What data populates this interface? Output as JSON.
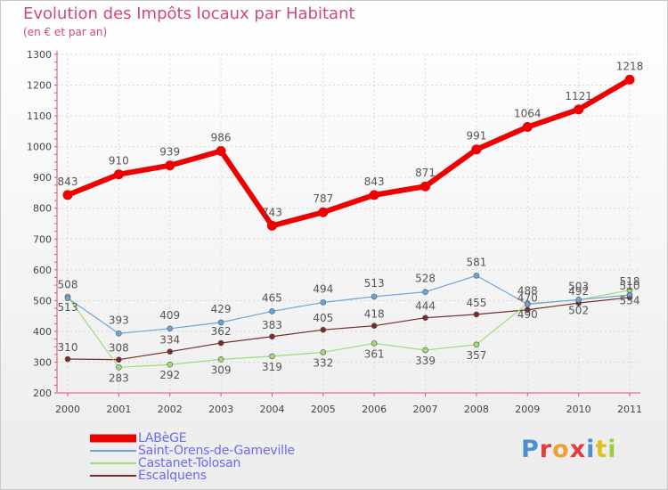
{
  "header": {
    "title": "Evolution des Impôts locaux par Habitant",
    "subtitle": "(en € et par an)"
  },
  "brand": {
    "text": "Proxiti",
    "letter_colors": [
      "#4a90d9",
      "#e23b3b",
      "#f0a030",
      "#e23b3b",
      "#4a90d9",
      "#e0c020",
      "#9ad040"
    ]
  },
  "chart_data": {
    "type": "line",
    "title": "Evolution des Impôts locaux par Habitant",
    "subtitle": "(en € et par an)",
    "xlabel": "",
    "ylabel": "",
    "ylim": [
      200,
      1300
    ],
    "yticks": [
      200,
      300,
      400,
      500,
      600,
      700,
      800,
      900,
      1000,
      1100,
      1200,
      1300
    ],
    "categories": [
      "2000",
      "2001",
      "2002",
      "2003",
      "2004",
      "2005",
      "2006",
      "2007",
      "2008",
      "2009",
      "2010",
      "2011"
    ],
    "legend_position": "bottom-left",
    "series": [
      {
        "name": "LABèGE",
        "color": "#ee0000",
        "values": [
          843,
          910,
          939,
          986,
          743,
          787,
          843,
          871,
          991,
          1064,
          1121,
          1218
        ],
        "labels": [
          "843",
          "910",
          "939",
          "986",
          "743",
          "787",
          "843",
          "871",
          "991",
          "1064",
          "1121",
          "1218"
        ]
      },
      {
        "name": "Saint-Orens-de-Gameville",
        "color": "#6aa4d8",
        "values": [
          508,
          393,
          409,
          429,
          465,
          494,
          513,
          528,
          581,
          488,
          503,
          518
        ],
        "labels": [
          "508",
          "393",
          "409",
          "429",
          "465",
          "494",
          "513",
          "528",
          "581",
          "488",
          "503",
          "518"
        ]
      },
      {
        "name": "Castanet-Tolosan",
        "color": "#a0dc78",
        "values": [
          513,
          283,
          292,
          309,
          319,
          332,
          361,
          339,
          357,
          490,
          502,
          534
        ],
        "labels": [
          "513",
          "283",
          "292",
          "309",
          "319",
          "332",
          "361",
          "339",
          "357",
          "490",
          "502",
          "534"
        ]
      },
      {
        "name": "Escalquens",
        "color": "#7a2a2a",
        "values": [
          310,
          308,
          334,
          362,
          383,
          405,
          418,
          444,
          455,
          470,
          492,
          510
        ],
        "labels": [
          "310",
          "308",
          "334",
          "362",
          "383",
          "405",
          "418",
          "444",
          "455",
          "470",
          "492",
          "510"
        ]
      }
    ]
  }
}
